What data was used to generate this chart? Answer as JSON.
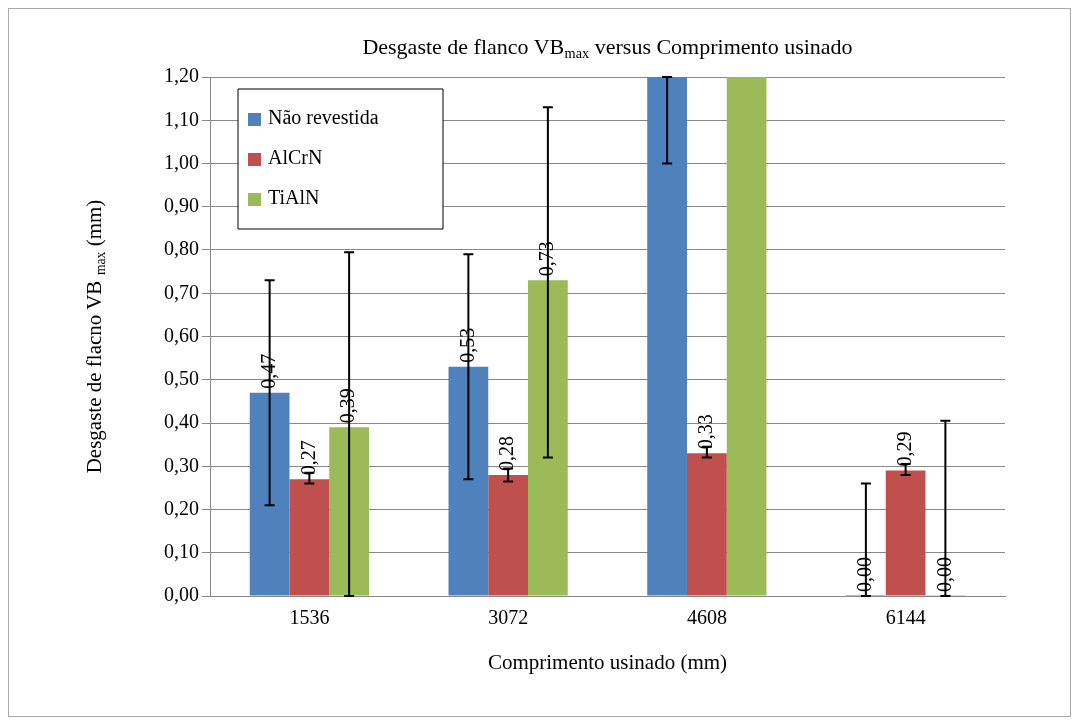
{
  "chart_data": {
    "type": "bar",
    "title": "Desgaste de flanco VB$_{max}$ versus Comprimento usinado",
    "xlabel": "Comprimento usinado (mm)",
    "ylabel": "Desgaste de flacno VB $_{max}$ (mm)",
    "categories": [
      "1536",
      "3072",
      "4608",
      "6144"
    ],
    "series": [
      {
        "name": "Não revestida",
        "color": "#4f81bd",
        "values": [
          0.47,
          0.53,
          1.2,
          0.0
        ],
        "value_labels": [
          "0,47",
          "0,53",
          null,
          "0,00"
        ],
        "errors": [
          [
            0.21,
            0.73
          ],
          [
            0.27,
            0.79
          ],
          [
            1.0,
            1.2
          ],
          [
            0.0,
            0.26
          ]
        ]
      },
      {
        "name": "AlCrN",
        "color": "#c0504d",
        "values": [
          0.27,
          0.28,
          0.33,
          0.29
        ],
        "value_labels": [
          "0,27",
          "0,28",
          "0,33",
          "0,29"
        ],
        "errors": [
          [
            0.26,
            0.285
          ],
          [
            0.265,
            0.295
          ],
          [
            0.32,
            0.345
          ],
          [
            0.28,
            0.305
          ]
        ]
      },
      {
        "name": "TiAlN",
        "color": "#9bbb59",
        "values": [
          0.39,
          0.73,
          1.2,
          0.0
        ],
        "value_labels": [
          "0,39",
          "0,73",
          null,
          "0,00"
        ],
        "errors": [
          [
            0.0,
            0.795
          ],
          [
            0.32,
            1.13
          ],
          null,
          [
            0.0,
            0.405
          ]
        ]
      }
    ],
    "ylim": [
      0,
      1.2
    ],
    "yticks": [
      {
        "value": 0,
        "label": "0,00"
      },
      {
        "value": 0.1,
        "label": "0,10"
      },
      {
        "value": 0.2,
        "label": "0,20"
      },
      {
        "value": 0.3,
        "label": "0,30"
      },
      {
        "value": 0.4,
        "label": "0,40"
      },
      {
        "value": 0.5,
        "label": "0,50"
      },
      {
        "value": 0.6,
        "label": "0,60"
      },
      {
        "value": 0.7,
        "label": "0,70"
      },
      {
        "value": 0.8,
        "label": "0,80"
      },
      {
        "value": 0.9,
        "label": "0,90"
      },
      {
        "value": 1.0,
        "label": "1,00"
      },
      {
        "value": 1.1,
        "label": "1,10"
      },
      {
        "value": 1.2,
        "label": "1,20"
      }
    ],
    "grid": "y",
    "legend": "top left"
  }
}
